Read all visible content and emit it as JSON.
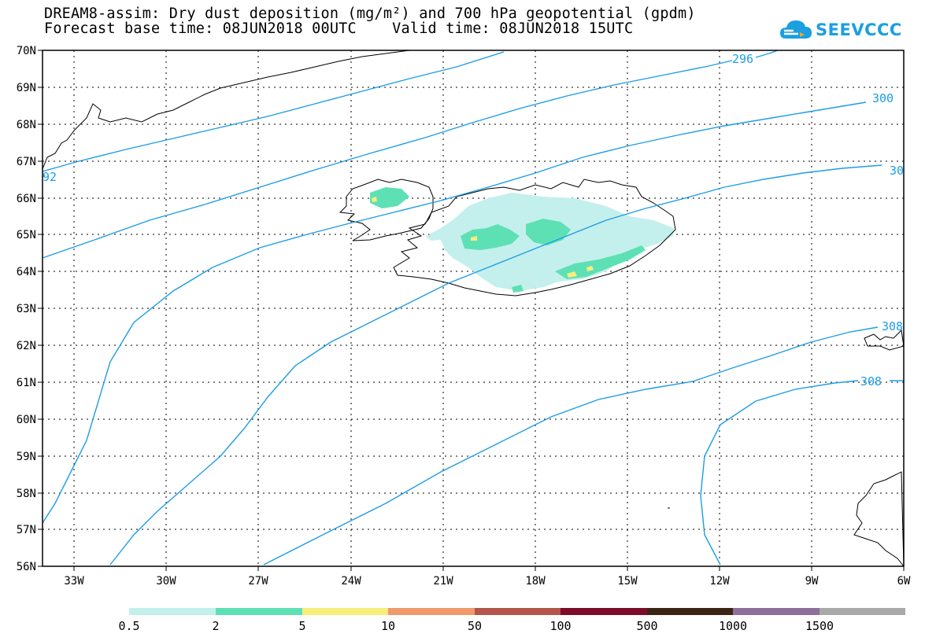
{
  "title": {
    "line1": "DREAM8-assim: Dry dust deposition (mg/m²) and 700 hPa geopotential (gpdm)",
    "line2": "Forecast base time: 08JUN2018 00UTC    Valid time: 08JUN2018 15UTC"
  },
  "logo": {
    "text": "SEEVCCC",
    "icon": "cloud-icon",
    "color": "#1a9fe0"
  },
  "axes": {
    "lat_labels": [
      "70N",
      "69N",
      "68N",
      "67N",
      "66N",
      "65N",
      "64N",
      "63N",
      "62N",
      "61N",
      "60N",
      "59N",
      "58N",
      "57N",
      "56N"
    ],
    "lon_labels": [
      "33W",
      "30W",
      "27W",
      "24W",
      "21W",
      "18W",
      "15W",
      "12W",
      "9W",
      "6W"
    ]
  },
  "contour_labels": [
    "296",
    "300",
    "30",
    "308",
    "308",
    "92"
  ],
  "contour_color": "#1e9de6",
  "colorbar": {
    "colors": [
      "#c3f0ec",
      "#5ee0b5",
      "#f7ee7c",
      "#ee9a6c",
      "#b2554a",
      "#7d0c2a",
      "#3a2414",
      "#8d6f9c",
      "#a9a9a9"
    ],
    "labels": [
      "0.5",
      "2",
      "5",
      "10",
      "50",
      "100",
      "500",
      "1000",
      "1500"
    ]
  }
}
